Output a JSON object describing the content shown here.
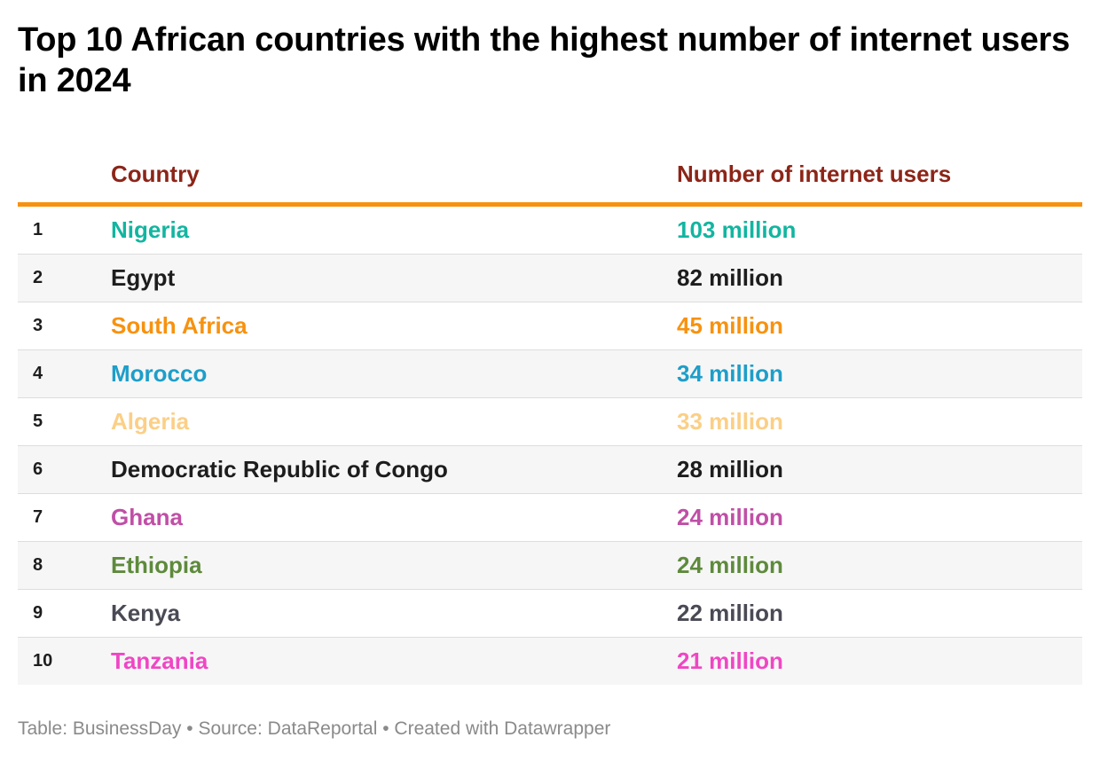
{
  "title": "Top 10 African countries with the highest number of internet users in 2024",
  "header": {
    "rank": "",
    "country": "Country",
    "users": "Number of internet users"
  },
  "footer": "Table: BusinessDay • Source: DataReportal • Created with Datawrapper",
  "colors": {
    "header_text": "#8c2518",
    "header_rule": "#f7920f",
    "zebra": "#f6f6f6"
  },
  "rows": [
    {
      "rank": "1",
      "country": "Nigeria",
      "users": "103 million",
      "color": "#12b5a0"
    },
    {
      "rank": "2",
      "country": "Egypt",
      "users": "82 million",
      "color": "#1d1d1d"
    },
    {
      "rank": "3",
      "country": "South Africa",
      "users": "45 million",
      "color": "#f7920f"
    },
    {
      "rank": "4",
      "country": "Morocco",
      "users": "34 million",
      "color": "#1e9ec9"
    },
    {
      "rank": "5",
      "country": "Algeria",
      "users": "33 million",
      "color": "#fbcf86"
    },
    {
      "rank": "6",
      "country": "Democratic Republic of Congo",
      "users": "28 million",
      "color": "#1d1d1d"
    },
    {
      "rank": "7",
      "country": "Ghana",
      "users": "24 million",
      "color": "#c04fa6"
    },
    {
      "rank": "8",
      "country": "Ethiopia",
      "users": "24 million",
      "color": "#5e8a3c"
    },
    {
      "rank": "9",
      "country": "Kenya",
      "users": "22 million",
      "color": "#4a4a55"
    },
    {
      "rank": "10",
      "country": "Tanzania",
      "users": "21 million",
      "color": "#f046c4"
    }
  ],
  "chart_data": {
    "type": "table",
    "columns": [
      "",
      "Country",
      "Number of internet users"
    ],
    "categories": [
      "Nigeria",
      "Egypt",
      "South Africa",
      "Morocco",
      "Algeria",
      "Democratic Republic of Congo",
      "Ghana",
      "Ethiopia",
      "Kenya",
      "Tanzania"
    ],
    "values": [
      103,
      82,
      45,
      34,
      33,
      28,
      24,
      24,
      22,
      21
    ],
    "unit": "million"
  }
}
